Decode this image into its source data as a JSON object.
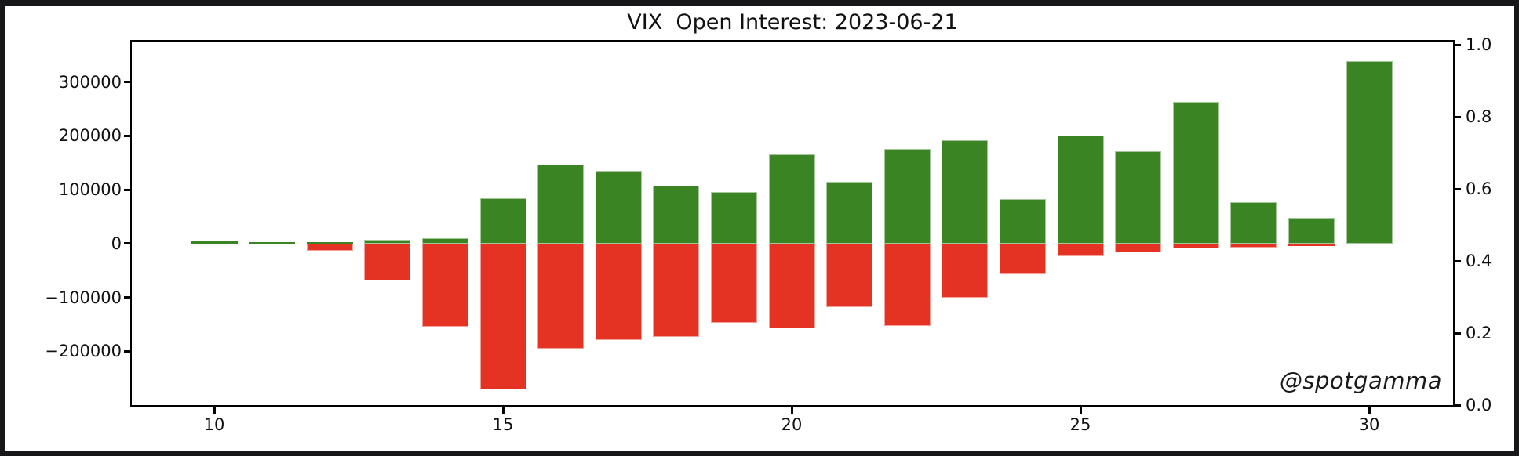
{
  "window": {
    "background_color": "#17171a",
    "figure_background_color": "#ffffff"
  },
  "title": "VIX  Open Interest: 2023-06-21",
  "watermark": "@spotgamma",
  "axes": {
    "x_ticks": [
      {
        "label": "10",
        "value": 10
      },
      {
        "label": "15",
        "value": 15
      },
      {
        "label": "20",
        "value": 20
      },
      {
        "label": "25",
        "value": 25
      },
      {
        "label": "30",
        "value": 30
      }
    ],
    "y_left_ticks": [
      {
        "label": "300000",
        "value": 300000
      },
      {
        "label": "200000",
        "value": 200000
      },
      {
        "label": "100000",
        "value": 100000
      },
      {
        "label": "0",
        "value": 0
      },
      {
        "label": "−100000",
        "value": -100000
      },
      {
        "label": "−200000",
        "value": -200000
      }
    ],
    "y_right_ticks": [
      {
        "label": "1.0",
        "value": 1.0
      },
      {
        "label": "0.8",
        "value": 0.8
      },
      {
        "label": "0.6",
        "value": 0.6
      },
      {
        "label": "0.4",
        "value": 0.4
      },
      {
        "label": "0.2",
        "value": 0.2
      },
      {
        "label": "0.0",
        "value": 0.0
      }
    ]
  },
  "chart_data": {
    "type": "bar",
    "title": "VIX  Open Interest: 2023-06-21",
    "xlabel": "",
    "ylabel_left": "",
    "ylabel_right": "",
    "x": [
      10,
      11,
      12,
      13,
      14,
      15,
      16,
      17,
      18,
      19,
      20,
      21,
      22,
      23,
      24,
      25,
      26,
      27,
      28,
      29,
      30
    ],
    "series": [
      {
        "name": "call_open_interest",
        "color": "#3a8423",
        "values": [
          4000,
          2000,
          3000,
          7000,
          10000,
          84000,
          146000,
          135000,
          108000,
          96000,
          166000,
          114000,
          175000,
          192000,
          83000,
          200000,
          171000,
          263000,
          77000,
          48000,
          338000
        ]
      },
      {
        "name": "put_open_interest",
        "color": "#e43223",
        "values": [
          0,
          0,
          -13000,
          -69000,
          -155000,
          -271000,
          -196000,
          -180000,
          -173000,
          -147000,
          -157000,
          -118000,
          -153000,
          -100000,
          -57000,
          -23000,
          -17000,
          -9000,
          -7000,
          -4000,
          -2000
        ]
      }
    ],
    "bar_width_strikes": 0.8,
    "xlim": [
      8.55,
      31.5
    ],
    "ylim_left": [
      -300000,
      375000
    ],
    "ylim_right": [
      0.0,
      1.0
    ],
    "grid": false,
    "legend": null,
    "annotations": [
      "@spotgamma"
    ]
  }
}
